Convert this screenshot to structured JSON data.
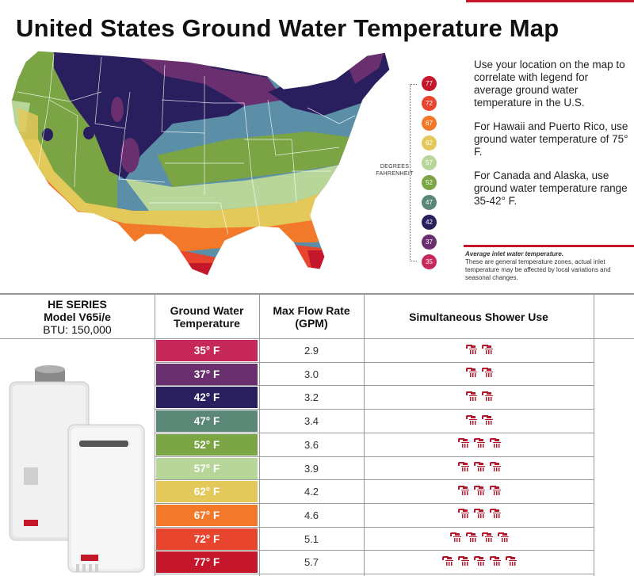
{
  "title": "United States Ground Water Temperature Map",
  "info": {
    "p1": "Use your location on the map to correlate with legend for average ground water temperature in the U.S.",
    "p2": "For Hawaii and Puerto Rico, use ground water temperature of 75° F.",
    "p3": "For Canada and Alaska, use ground water temperature range 35-42° F."
  },
  "legend": {
    "label_line1": "DEGREES",
    "label_line2": "FAHRENHEIT",
    "items": [
      {
        "value": "77",
        "color": "#c4172c"
      },
      {
        "value": "72",
        "color": "#e8452e"
      },
      {
        "value": "67",
        "color": "#f2782a"
      },
      {
        "value": "62",
        "color": "#e3c95a"
      },
      {
        "value": "57",
        "color": "#b8d69a"
      },
      {
        "value": "52",
        "color": "#7ba444"
      },
      {
        "value": "47",
        "color": "#5b8776"
      },
      {
        "value": "42",
        "color": "#2a1f5e"
      },
      {
        "value": "37",
        "color": "#6a2f6e"
      },
      {
        "value": "35",
        "color": "#c6285a"
      }
    ]
  },
  "note": {
    "title": "Average inlet water temperature.",
    "body": "These are general temperature zones, actual inlet temperature may be affected by local variations and seasonal changes."
  },
  "table": {
    "model": {
      "series": "HE SERIES",
      "model": "Model V65i/e",
      "btu": "BTU: 150,000"
    },
    "headers": {
      "temp_line1": "Ground Water",
      "temp_line2": "Temperature",
      "flow_line1": "Max Flow Rate",
      "flow_line2": "(GPM)",
      "shower": "Simultaneous Shower Use"
    },
    "rows": [
      {
        "temp": "35° F",
        "flow": "2.9",
        "showers": 2,
        "color": "#c6285a"
      },
      {
        "temp": "37° F",
        "flow": "3.0",
        "showers": 2,
        "color": "#6a2f6e"
      },
      {
        "temp": "42° F",
        "flow": "3.2",
        "showers": 2,
        "color": "#2a1f5e"
      },
      {
        "temp": "47° F",
        "flow": "3.4",
        "showers": 2,
        "color": "#5b8776"
      },
      {
        "temp": "52° F",
        "flow": "3.6",
        "showers": 3,
        "color": "#7ba444"
      },
      {
        "temp": "57° F",
        "flow": "3.9",
        "showers": 3,
        "color": "#b8d69a"
      },
      {
        "temp": "62° F",
        "flow": "4.2",
        "showers": 3,
        "color": "#e3c95a"
      },
      {
        "temp": "67° F",
        "flow": "4.6",
        "showers": 3,
        "color": "#f2782a"
      },
      {
        "temp": "72° F",
        "flow": "5.1",
        "showers": 4,
        "color": "#e8452e"
      },
      {
        "temp": "77° F",
        "flow": "5.7",
        "showers": 5,
        "color": "#c4172c"
      }
    ],
    "shower_icon_color": "#b01a2c"
  }
}
